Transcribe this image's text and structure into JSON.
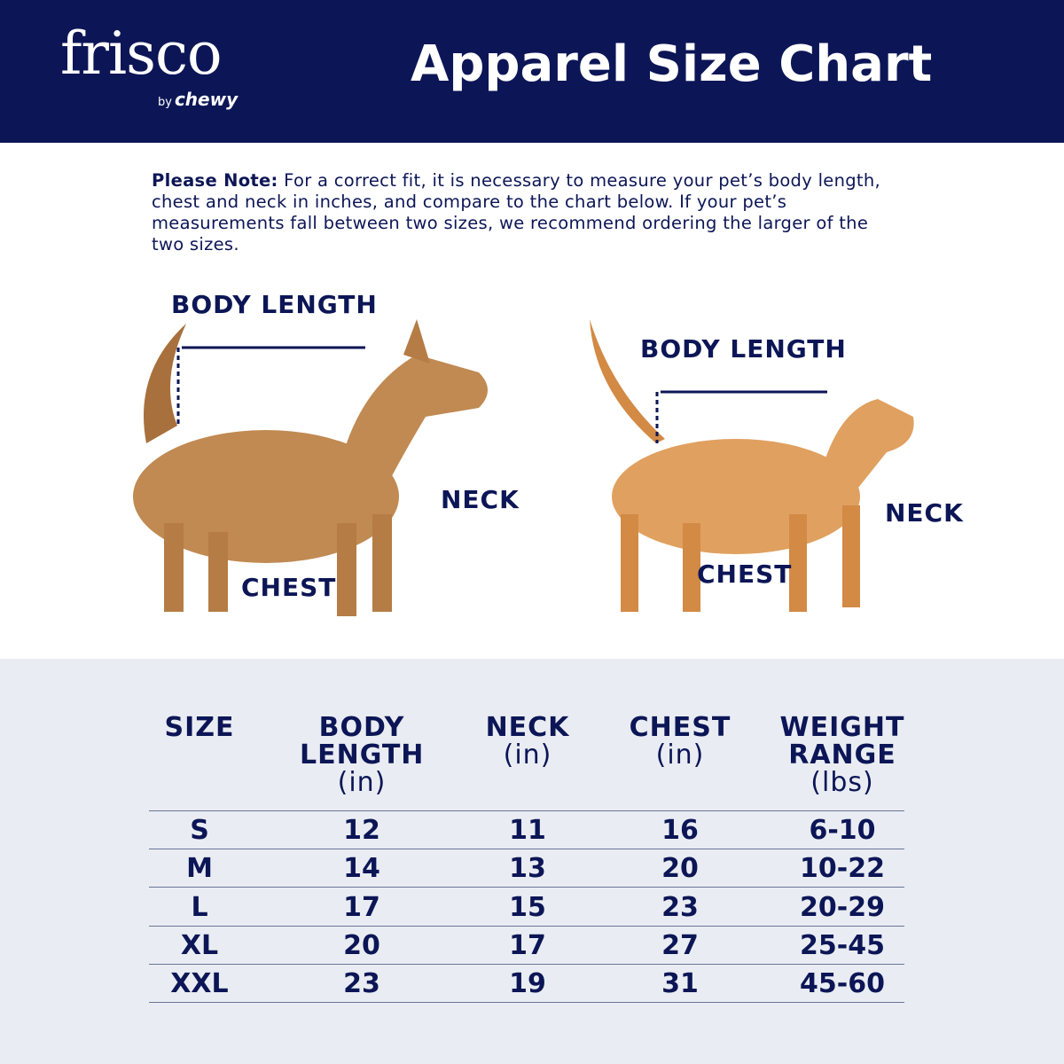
{
  "brand": {
    "logo": "frisco",
    "by": "by",
    "chewy": "chewy"
  },
  "header": {
    "title": "Apparel Size Chart"
  },
  "note": {
    "bold": "Please Note:",
    "text": " For a correct fit, it is necessary to measure your pet’s body length, chest and neck in inches, and compare to the chart below. If your pet’s measurements fall between two sizes, we recommend ordering the larger of the two sizes."
  },
  "dog": {
    "body_length": "BODY LENGTH",
    "neck": "NECK",
    "chest": "CHEST"
  },
  "cat": {
    "body_length": "BODY LENGTH",
    "neck": "NECK",
    "chest": "CHEST"
  },
  "colors": {
    "navy": "#0c1656",
    "panel": "#e9edf3"
  },
  "table": {
    "headers": [
      {
        "label": "SIZE",
        "unit": ""
      },
      {
        "label": "BODY LENGTH",
        "unit": "(in)"
      },
      {
        "label": "NECK",
        "unit": "(in)"
      },
      {
        "label": "CHEST",
        "unit": "(in)"
      },
      {
        "label": "WEIGHT RANGE",
        "unit": "(lbs)"
      }
    ],
    "rows": [
      [
        "S",
        "12",
        "11",
        "16",
        "6-10"
      ],
      [
        "M",
        "14",
        "13",
        "20",
        "10-22"
      ],
      [
        "L",
        "17",
        "15",
        "23",
        "20-29"
      ],
      [
        "XL",
        "20",
        "17",
        "27",
        "25-45"
      ],
      [
        "XXL",
        "23",
        "19",
        "31",
        "45-60"
      ]
    ]
  }
}
